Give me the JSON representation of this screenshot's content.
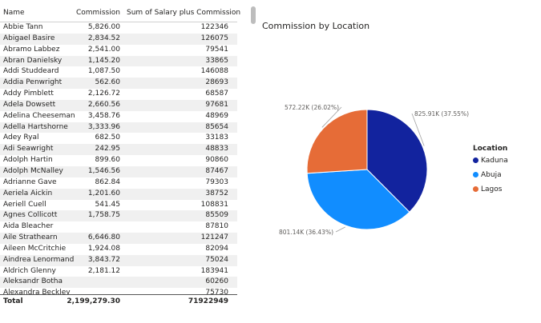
{
  "table": {
    "headers": {
      "name": "Name",
      "commission": "Commission",
      "sum": "Sum of Salary plus Commission"
    },
    "rows": [
      {
        "name": "Abbie Tann",
        "commission": "5,826.00",
        "sum": "122346"
      },
      {
        "name": "Abigael Basire",
        "commission": "2,834.52",
        "sum": "126075"
      },
      {
        "name": "Abramo Labbez",
        "commission": "2,541.00",
        "sum": "79541"
      },
      {
        "name": "Abran Danielsky",
        "commission": "1,145.20",
        "sum": "33865"
      },
      {
        "name": "Addi Studdeard",
        "commission": "1,087.50",
        "sum": "146088"
      },
      {
        "name": "Addia Penwright",
        "commission": "562.60",
        "sum": "28693"
      },
      {
        "name": "Addy Pimblett",
        "commission": "2,126.72",
        "sum": "68587"
      },
      {
        "name": "Adela Dowsett",
        "commission": "2,660.56",
        "sum": "97681"
      },
      {
        "name": "Adelina Cheeseman",
        "commission": "3,458.76",
        "sum": "48969"
      },
      {
        "name": "Adella Hartshorne",
        "commission": "3,333.96",
        "sum": "85654"
      },
      {
        "name": "Adey Ryal",
        "commission": "682.50",
        "sum": "33183"
      },
      {
        "name": "Adi Seawright",
        "commission": "242.95",
        "sum": "48833"
      },
      {
        "name": "Adolph Hartin",
        "commission": "899.60",
        "sum": "90860"
      },
      {
        "name": "Adolph McNalley",
        "commission": "1,546.56",
        "sum": "87467"
      },
      {
        "name": "Adrianne Gave",
        "commission": "862.84",
        "sum": "79303"
      },
      {
        "name": "Aeriela Aickin",
        "commission": "1,201.60",
        "sum": "38752"
      },
      {
        "name": "Aeriell Cuell",
        "commission": "541.45",
        "sum": "108831"
      },
      {
        "name": "Agnes Collicott",
        "commission": "1,758.75",
        "sum": "85509"
      },
      {
        "name": "Aida Bleacher",
        "commission": "",
        "sum": "87810"
      },
      {
        "name": "Aile Strathearn",
        "commission": "6,646.80",
        "sum": "121247"
      },
      {
        "name": "Aileen McCritchie",
        "commission": "1,924.08",
        "sum": "82094"
      },
      {
        "name": "Aindrea Lenormand",
        "commission": "3,843.72",
        "sum": "75024"
      },
      {
        "name": "Aldrich Glenny",
        "commission": "2,181.12",
        "sum": "183941"
      },
      {
        "name": "Aleksandr Botha",
        "commission": "",
        "sum": "60260"
      },
      {
        "name": "Alexandra Beckley",
        "commission": "",
        "sum": "75730"
      }
    ],
    "total": {
      "label": "Total",
      "commission": "2,199,279.30",
      "sum": "71922949"
    }
  },
  "chart_data": {
    "type": "pie",
    "title": "Commission by Location",
    "legend_title": "Location",
    "legend_position": "right",
    "slices": [
      {
        "name": "Kaduna",
        "value": 825910,
        "label": "825.91K (37.55%)",
        "color": "#12239E"
      },
      {
        "name": "Abuja",
        "value": 801140,
        "label": "801.14K (36.43%)",
        "color": "#118DFF"
      },
      {
        "name": "Lagos",
        "value": 572220,
        "label": "572.22K (26.02%)",
        "color": "#E66C37"
      }
    ]
  }
}
